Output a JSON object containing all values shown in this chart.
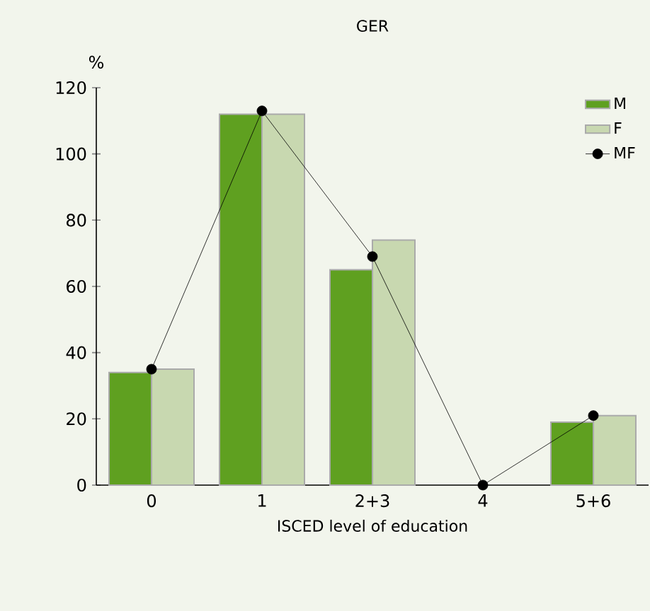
{
  "chart_data": {
    "type": "bar",
    "title": "GER",
    "xlabel": "ISCED level of education",
    "ylabel": "%",
    "categories": [
      "0",
      "1",
      "2+3",
      "4",
      "5+6"
    ],
    "series": [
      {
        "name": "M",
        "color": "#5fa020",
        "values": [
          34,
          112,
          65,
          null,
          19
        ]
      },
      {
        "name": "F",
        "color": "#c8d8b0",
        "values": [
          35,
          112,
          74,
          null,
          21
        ]
      },
      {
        "name": "MF",
        "type": "line",
        "color": "#000000",
        "marker": "circle",
        "values": [
          35,
          113,
          69,
          0,
          21
        ]
      }
    ],
    "ylim": [
      0,
      120
    ],
    "yticks": [
      0,
      20,
      40,
      60,
      80,
      100,
      120
    ],
    "grid": false,
    "legend": "top right"
  }
}
